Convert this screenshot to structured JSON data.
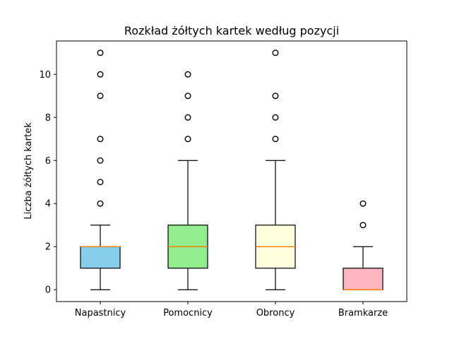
{
  "chart_data": {
    "type": "box",
    "title": "Rozkład żółtych kartek według pozycji",
    "xlabel": "",
    "ylabel": "Liczba żółtych kartek",
    "ylim": [
      -0.55,
      11.55
    ],
    "yticks": [
      0,
      2,
      4,
      6,
      8,
      10
    ],
    "grid": false,
    "categories": [
      "Napastnicy",
      "Pomocnicy",
      "Obroncy",
      "Bramkarze"
    ],
    "boxes": [
      {
        "name": "Napastnicy",
        "color": "#87ceeb",
        "whisker_low": 0,
        "q1": 1,
        "median": 2,
        "q3": 2,
        "whisker_high": 3,
        "outliers": [
          4,
          5,
          6,
          7,
          9,
          10,
          11
        ]
      },
      {
        "name": "Pomocnicy",
        "color": "#90ee90",
        "whisker_low": 0,
        "q1": 1,
        "median": 2,
        "q3": 3,
        "whisker_high": 6,
        "outliers": [
          7,
          8,
          9,
          10
        ]
      },
      {
        "name": "Obroncy",
        "color": "#ffffe0",
        "whisker_low": 0,
        "q1": 1,
        "median": 2,
        "q3": 3,
        "whisker_high": 6,
        "outliers": [
          7,
          8,
          9,
          11
        ]
      },
      {
        "name": "Bramkarze",
        "color": "#ffb6c1",
        "whisker_low": 0,
        "q1": 0,
        "median": 0,
        "q3": 1,
        "whisker_high": 2,
        "outliers": [
          3,
          4
        ]
      }
    ],
    "median_color": "#ff7f0e"
  }
}
